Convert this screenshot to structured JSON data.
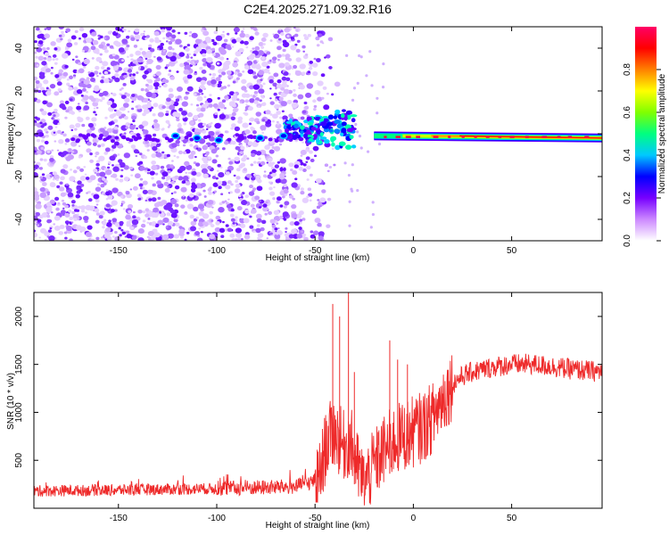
{
  "title": "C2E4.2025.271.09.32.R16",
  "chart_data": [
    {
      "type": "heatmap",
      "xlabel": "Height of straight line (km)",
      "ylabel": "Frequency (Hz)",
      "xlim": [
        -193,
        96
      ],
      "ylim": [
        -50,
        50
      ],
      "xticks": [
        -150,
        -100,
        -50,
        0,
        50
      ],
      "yticks": [
        -40,
        -20,
        0,
        20,
        40
      ],
      "signal": {
        "noise_region_x": [
          -193,
          -45
        ],
        "band_x": [
          -20,
          96
        ],
        "band_freq_start": -1,
        "band_freq_end": -2,
        "scatter_cluster_x": [
          -65,
          -30
        ],
        "scatter_cluster_freq": [
          -10,
          10
        ]
      },
      "colorbar": {
        "label": "Normalized spectral amplitude",
        "ticks": [
          "0.0",
          "0.2",
          "0.4",
          "0.6",
          "0.8"
        ],
        "range": [
          0,
          1
        ],
        "colormap": [
          "#ffffff",
          "#cc88ff",
          "#7700ff",
          "#0000ff",
          "#00c8ff",
          "#00ff80",
          "#80ff00",
          "#ffff00",
          "#ff8000",
          "#ff0000",
          "#ff0066"
        ]
      }
    },
    {
      "type": "line",
      "xlabel": "Height of straight line (km)",
      "ylabel": "SNR (10 * v/v)",
      "xlim": [
        -193,
        96
      ],
      "ylim": [
        0,
        2250
      ],
      "xticks": [
        -150,
        -100,
        -50,
        0,
        50
      ],
      "yticks": [
        500,
        1000,
        1500,
        2000
      ],
      "color": "#ee2a2a",
      "trend": {
        "x": [
          -193,
          -150,
          -100,
          -60,
          -48,
          -44,
          -40,
          -36,
          -32,
          -28,
          -25,
          -20,
          -15,
          -10,
          -5,
          0,
          5,
          10,
          15,
          20,
          25,
          30,
          40,
          50,
          60,
          70,
          80,
          96
        ],
        "y": [
          180,
          190,
          205,
          225,
          300,
          700,
          800,
          650,
          700,
          400,
          250,
          450,
          600,
          700,
          750,
          800,
          850,
          950,
          1150,
          1300,
          1380,
          1420,
          1470,
          1500,
          1500,
          1480,
          1450,
          1420
        ]
      },
      "spikes": [
        {
          "x": -41,
          "y": 2130
        },
        {
          "x": -37.5,
          "y": 2000
        },
        {
          "x": -33,
          "y": 2250
        },
        {
          "x": -30,
          "y": 1420
        },
        {
          "x": -12,
          "y": 1750
        },
        {
          "x": -8,
          "y": 1550
        },
        {
          "x": -3,
          "y": 1500
        }
      ]
    }
  ]
}
